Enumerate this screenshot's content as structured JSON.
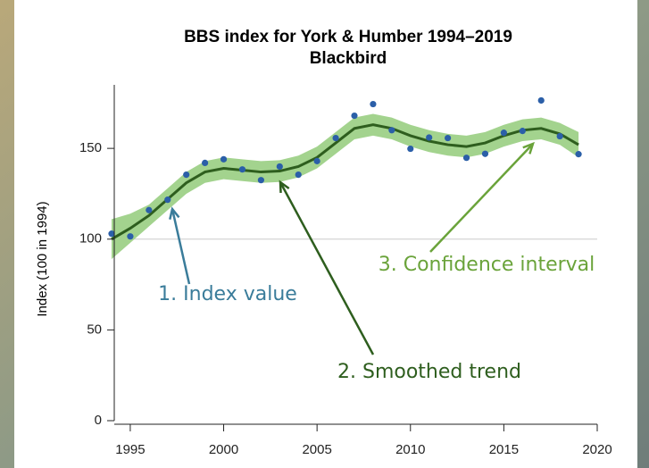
{
  "chart_data": {
    "type": "line",
    "title": "BBS index for York & Humber 1994–2019",
    "subtitle": "Blackbird",
    "y_label": "Index (100 in 1994)",
    "x": [
      1994,
      1995,
      1996,
      1997,
      1998,
      1999,
      2000,
      2001,
      2002,
      2003,
      2004,
      2005,
      2006,
      2007,
      2008,
      2009,
      2010,
      2011,
      2012,
      2013,
      2014,
      2015,
      2016,
      2017,
      2018,
      2019
    ],
    "series": [
      {
        "name": "Index value",
        "color": "#2b5fa8",
        "values": [
          103,
          101.5,
          116,
          121.7,
          135.5,
          142,
          144,
          138.4,
          132.5,
          140,
          135.5,
          143,
          155.7,
          168,
          174.4,
          160,
          149.8,
          156,
          155.7,
          144.8,
          147,
          158.6,
          159.6,
          176.4,
          156.7,
          146.8
        ]
      },
      {
        "name": "Smoothed trend",
        "color": "#2e5e1e",
        "values": [
          100,
          106,
          113,
          122,
          131,
          137,
          139,
          138,
          137,
          137.5,
          140,
          145,
          153,
          161,
          163,
          161,
          157,
          154,
          152,
          151,
          153,
          157,
          160,
          161,
          158,
          152
        ]
      }
    ],
    "confidence_interval": {
      "color": "#a3d38e",
      "upper": [
        111,
        114,
        119,
        128,
        137,
        143,
        145,
        144,
        143,
        143.5,
        146,
        151,
        159,
        167,
        169,
        167,
        163,
        160,
        158,
        157,
        159,
        163,
        166,
        167,
        164,
        159
      ],
      "lower": [
        89,
        98,
        107,
        116,
        125,
        131,
        133,
        132,
        131,
        131.5,
        134,
        139,
        147,
        155,
        157,
        155,
        151,
        148,
        146,
        145,
        147,
        151,
        154,
        155,
        152,
        145
      ]
    },
    "reference_line": 100,
    "xlim": [
      1994,
      2020
    ],
    "xticks": [
      1995,
      2000,
      2005,
      2010,
      2015,
      2020
    ],
    "ylim": [
      0,
      185
    ],
    "yticks": [
      0,
      50,
      100,
      150
    ],
    "annotations": [
      {
        "text": "1. Index value",
        "color": "#3a7c9a"
      },
      {
        "text": "2. Smoothed trend",
        "color": "#2e5e1e"
      },
      {
        "text": "3. Confidence interval",
        "color": "#6aa33a"
      }
    ]
  }
}
